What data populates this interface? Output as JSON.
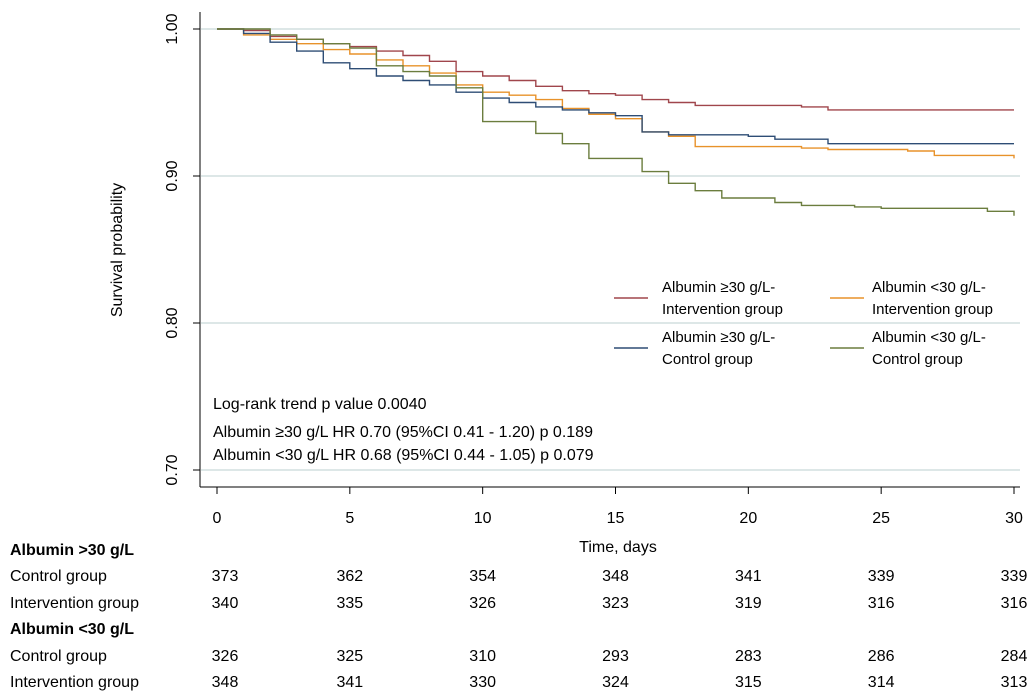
{
  "chart_data": {
    "type": "line",
    "step": true,
    "title": "",
    "xlabel": "Time, days",
    "ylabel": "Survival probability",
    "xlim": [
      0,
      30
    ],
    "ylim": [
      0.66,
      1.0
    ],
    "x_ticks": [
      0,
      5,
      10,
      15,
      20,
      25,
      30
    ],
    "x_tick_labels": [
      "0",
      "5",
      "10",
      "15",
      "20",
      "25",
      "30"
    ],
    "y_ticks": [
      0.7,
      0.8,
      0.9,
      1.0
    ],
    "y_tick_labels": [
      "0.70",
      "0.80",
      "0.90",
      "1.00"
    ],
    "grid": "horizontal",
    "legend_placement": "right",
    "series": [
      {
        "name": "Albumin ≥30 g/L- Intervention group",
        "legend_lines": [
          "Albumin ≥30 g/L-",
          "Intervention group"
        ],
        "color": "#a0464c",
        "points": [
          [
            0,
            1.0
          ],
          [
            1,
            0.999
          ],
          [
            2,
            0.995
          ],
          [
            3,
            0.993
          ],
          [
            4,
            0.99
          ],
          [
            5,
            0.988
          ],
          [
            6,
            0.985
          ],
          [
            7,
            0.982
          ],
          [
            8,
            0.978
          ],
          [
            9,
            0.971
          ],
          [
            10,
            0.968
          ],
          [
            11,
            0.965
          ],
          [
            12,
            0.961
          ],
          [
            13,
            0.958
          ],
          [
            14,
            0.956
          ],
          [
            15,
            0.955
          ],
          [
            16,
            0.952
          ],
          [
            17,
            0.95
          ],
          [
            18,
            0.948
          ],
          [
            20,
            0.948
          ],
          [
            22,
            0.947
          ],
          [
            23,
            0.945
          ],
          [
            30,
            0.945
          ]
        ]
      },
      {
        "name": "Albumin <30 g/L- Intervention group",
        "legend_lines": [
          "Albumin <30 g/L-",
          "Intervention group"
        ],
        "color": "#e8922a",
        "points": [
          [
            0,
            1.0
          ],
          [
            1,
            0.996
          ],
          [
            2,
            0.993
          ],
          [
            3,
            0.99
          ],
          [
            4,
            0.986
          ],
          [
            5,
            0.983
          ],
          [
            6,
            0.979
          ],
          [
            7,
            0.975
          ],
          [
            8,
            0.97
          ],
          [
            9,
            0.962
          ],
          [
            10,
            0.957
          ],
          [
            11,
            0.955
          ],
          [
            12,
            0.952
          ],
          [
            13,
            0.946
          ],
          [
            14,
            0.942
          ],
          [
            15,
            0.939
          ],
          [
            16,
            0.93
          ],
          [
            17,
            0.927
          ],
          [
            18,
            0.92
          ],
          [
            20,
            0.92
          ],
          [
            22,
            0.919
          ],
          [
            23,
            0.918
          ],
          [
            26,
            0.917
          ],
          [
            27,
            0.914
          ],
          [
            30,
            0.912
          ]
        ]
      },
      {
        "name": "Albumin ≥30 g/L- Control group",
        "legend_lines": [
          "Albumin ≥30 g/L-",
          "Control group"
        ],
        "color": "#2e4d75",
        "points": [
          [
            0,
            1.0
          ],
          [
            1,
            0.997
          ],
          [
            2,
            0.991
          ],
          [
            3,
            0.985
          ],
          [
            4,
            0.977
          ],
          [
            5,
            0.973
          ],
          [
            6,
            0.968
          ],
          [
            7,
            0.965
          ],
          [
            8,
            0.962
          ],
          [
            9,
            0.957
          ],
          [
            10,
            0.953
          ],
          [
            11,
            0.95
          ],
          [
            12,
            0.947
          ],
          [
            13,
            0.945
          ],
          [
            14,
            0.943
          ],
          [
            15,
            0.941
          ],
          [
            16,
            0.93
          ],
          [
            17,
            0.928
          ],
          [
            20,
            0.927
          ],
          [
            21,
            0.925
          ],
          [
            23,
            0.922
          ],
          [
            30,
            0.922
          ]
        ]
      },
      {
        "name": "Albumin <30 g/L- Control group",
        "legend_lines": [
          "Albumin <30 g/L-",
          "Control group"
        ],
        "color": "#6b7d3e",
        "points": [
          [
            0,
            1.0
          ],
          [
            2,
            0.996
          ],
          [
            3,
            0.993
          ],
          [
            4,
            0.99
          ],
          [
            5,
            0.987
          ],
          [
            6,
            0.975
          ],
          [
            7,
            0.971
          ],
          [
            8,
            0.968
          ],
          [
            9,
            0.96
          ],
          [
            10,
            0.937
          ],
          [
            12,
            0.929
          ],
          [
            13,
            0.922
          ],
          [
            14,
            0.912
          ],
          [
            16,
            0.903
          ],
          [
            17,
            0.895
          ],
          [
            18,
            0.89
          ],
          [
            19,
            0.885
          ],
          [
            21,
            0.882
          ],
          [
            22,
            0.88
          ],
          [
            24,
            0.879
          ],
          [
            25,
            0.878
          ],
          [
            29,
            0.876
          ],
          [
            30,
            0.873
          ]
        ]
      }
    ],
    "annotations": [
      "Log-rank trend p value 0.0040",
      "Albumin ≥30 g/L HR 0.70 (95%CI 0.41 - 1.20) p 0.189",
      "Albumin <30 g/L HR 0.68 (95%CI 0.44 - 1.05) p 0.079"
    ],
    "risk_table": {
      "timepoints": [
        0,
        5,
        10,
        15,
        20,
        25,
        30
      ],
      "groups": [
        {
          "header": "Albumin >30  g/L",
          "rows": [
            {
              "label": "Control group",
              "values": [
                373,
                362,
                354,
                348,
                341,
                339,
                339
              ]
            },
            {
              "label": "Intervention group",
              "values": [
                340,
                335,
                326,
                323,
                319,
                316,
                316
              ]
            }
          ]
        },
        {
          "header": "Albumin <30  g/L",
          "rows": [
            {
              "label": "Control group",
              "values": [
                326,
                325,
                310,
                293,
                283,
                286,
                284
              ]
            },
            {
              "label": "Intervention group",
              "values": [
                348,
                341,
                330,
                324,
                315,
                314,
                313
              ]
            }
          ]
        }
      ]
    }
  }
}
